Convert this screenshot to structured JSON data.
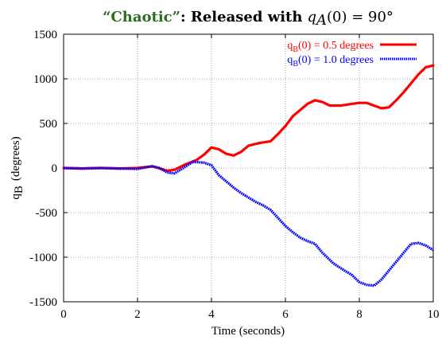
{
  "chart_data": {
    "type": "line",
    "title": {
      "quoted": "“Chaotic”",
      "rest": ": Released with",
      "math_var": "q",
      "math_sub": "A",
      "math_rest": "(0) = 90°"
    },
    "xlabel": "Time (seconds)",
    "ylabel": {
      "main": "q",
      "sub": "B",
      "rest": "(degrees)"
    },
    "xlim": [
      0,
      10
    ],
    "ylim": [
      -1500,
      1500
    ],
    "xticks": [
      0,
      2,
      4,
      6,
      8,
      10
    ],
    "yticks": [
      -1500,
      -1000,
      -500,
      0,
      500,
      1000,
      1500
    ],
    "grid": true,
    "legend_position": "top-right",
    "series": [
      {
        "name": "qB(0) = 0.5 degrees",
        "legend": {
          "main": "q",
          "sub": "B",
          "rest": "(0) = 0.5 degrees"
        },
        "color": "#ff0000",
        "style": "solid",
        "x": [
          0,
          0.5,
          1.0,
          1.5,
          2.0,
          2.4,
          2.8,
          3.0,
          3.3,
          3.6,
          3.8,
          4.0,
          4.2,
          4.4,
          4.6,
          4.8,
          5.0,
          5.3,
          5.6,
          5.8,
          6.0,
          6.2,
          6.4,
          6.6,
          6.8,
          7.0,
          7.2,
          7.5,
          7.8,
          8.0,
          8.2,
          8.4,
          8.6,
          8.8,
          9.0,
          9.2,
          9.4,
          9.6,
          9.8,
          10.0
        ],
        "y": [
          0,
          -5,
          0,
          -5,
          0,
          20,
          -30,
          -20,
          40,
          90,
          150,
          230,
          210,
          160,
          140,
          180,
          250,
          280,
          300,
          380,
          470,
          580,
          650,
          720,
          760,
          740,
          700,
          700,
          720,
          730,
          730,
          700,
          670,
          680,
          760,
          850,
          950,
          1050,
          1130,
          1150
        ]
      },
      {
        "name": "qB(0) = 1.0 degrees",
        "legend": {
          "main": "q",
          "sub": "B",
          "rest": "(0) = 1.0 degrees"
        },
        "color": "#0000ff",
        "style": "dotted",
        "x": [
          0,
          0.5,
          1.0,
          1.5,
          2.0,
          2.4,
          2.6,
          2.8,
          3.0,
          3.2,
          3.5,
          3.8,
          4.0,
          4.2,
          4.4,
          4.6,
          4.8,
          5.0,
          5.2,
          5.4,
          5.6,
          5.8,
          6.0,
          6.2,
          6.4,
          6.6,
          6.8,
          7.0,
          7.3,
          7.6,
          7.8,
          8.0,
          8.2,
          8.4,
          8.6,
          8.8,
          9.0,
          9.2,
          9.4,
          9.6,
          9.8,
          10.0
        ],
        "y": [
          0,
          -5,
          0,
          -5,
          -10,
          20,
          0,
          -50,
          -60,
          -10,
          70,
          60,
          30,
          -80,
          -150,
          -220,
          -280,
          -330,
          -380,
          -420,
          -470,
          -560,
          -650,
          -720,
          -780,
          -820,
          -850,
          -950,
          -1070,
          -1150,
          -1200,
          -1280,
          -1310,
          -1320,
          -1250,
          -1150,
          -1050,
          -950,
          -850,
          -840,
          -870,
          -920
        ]
      }
    ]
  }
}
